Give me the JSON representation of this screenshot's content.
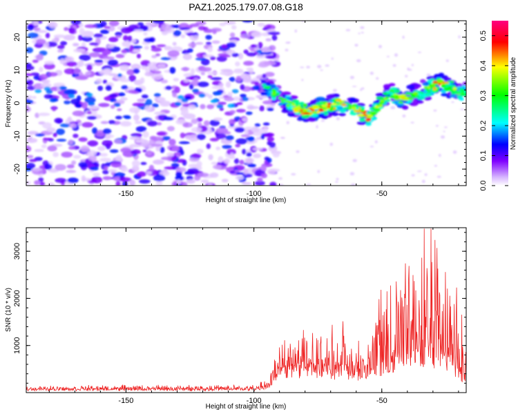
{
  "title": "PAZ1.2025.179.07.08.G18",
  "chart_data": [
    {
      "type": "heatmap",
      "xlabel": "Height of straight line (km)",
      "ylabel": "Frequency (Hz)",
      "xlim": [
        -189,
        -17
      ],
      "ylim": [
        -25,
        25
      ],
      "xticks": [
        -150,
        -100,
        -50
      ],
      "yticks": [
        -20,
        -10,
        0,
        10,
        20
      ],
      "grid": false,
      "colorbar": {
        "label": "Normalized spectral amplitude",
        "range": [
          0.0,
          0.55
        ],
        "ticks": [
          0.0,
          0.1,
          0.2,
          0.3,
          0.4,
          0.5
        ],
        "colormap": [
          "#ffffff",
          "#7f00ff",
          "#0000ff",
          "#00ffff",
          "#00ff00",
          "#ffff00",
          "#ff0000",
          "#ff00ff"
        ]
      },
      "ridge": {
        "description_points": [
          {
            "x": -97,
            "y": 5,
            "amp": 0.25
          },
          {
            "x": -92,
            "y": 3,
            "amp": 0.35
          },
          {
            "x": -85,
            "y": -1,
            "amp": 0.4
          },
          {
            "x": -80,
            "y": -2.5,
            "amp": 0.5
          },
          {
            "x": -70,
            "y": -1,
            "amp": 0.5
          },
          {
            "x": -67,
            "y": 0,
            "amp": 0.45
          },
          {
            "x": -60,
            "y": -2,
            "amp": 0.42
          },
          {
            "x": -55,
            "y": -4.5,
            "amp": 0.55
          },
          {
            "x": -47,
            "y": 3.5,
            "amp": 0.35
          },
          {
            "x": -43,
            "y": 1,
            "amp": 0.45
          },
          {
            "x": -36,
            "y": 3,
            "amp": 0.35
          },
          {
            "x": -27,
            "y": 6,
            "amp": 0.5
          },
          {
            "x": -19,
            "y": 3,
            "amp": 0.35
          }
        ]
      }
    },
    {
      "type": "line",
      "xlabel": "Height of straight line (km)",
      "ylabel": "SNR (10 * v/v)",
      "xlim": [
        -189,
        -17
      ],
      "ylim": [
        0,
        3500
      ],
      "xticks": [
        -150,
        -100,
        -50
      ],
      "yticks": [
        1000,
        2000,
        3000
      ],
      "grid": false,
      "color": "#ee2222",
      "envelope": [
        {
          "x": -189,
          "base": 60,
          "amp": 80
        },
        {
          "x": -100,
          "base": 60,
          "amp": 100
        },
        {
          "x": -94,
          "base": 120,
          "amp": 200
        },
        {
          "x": -90,
          "base": 450,
          "amp": 700
        },
        {
          "x": -75,
          "base": 450,
          "amp": 900
        },
        {
          "x": -66,
          "base": 450,
          "amp": 1100
        },
        {
          "x": -55,
          "base": 350,
          "amp": 700
        },
        {
          "x": -48,
          "base": 500,
          "amp": 1600
        },
        {
          "x": -40,
          "base": 700,
          "amp": 2400
        },
        {
          "x": -28,
          "base": 800,
          "amp": 2600
        },
        {
          "x": -22,
          "base": 500,
          "amp": 1500
        },
        {
          "x": -17,
          "base": 300,
          "amp": 900
        }
      ]
    }
  ]
}
